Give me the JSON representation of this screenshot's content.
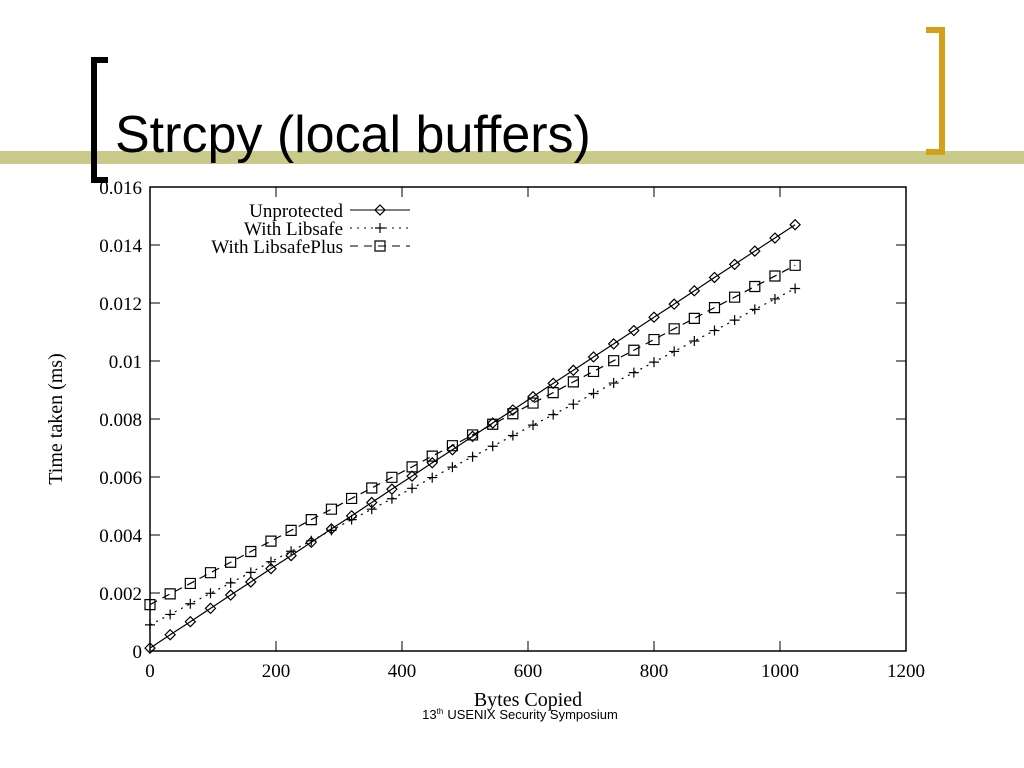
{
  "slide_title": "Strcpy (local buffers)",
  "footer": {
    "number": "13",
    "suffix": "th",
    "text": "USENIX Security Symposium"
  },
  "chart_data": {
    "type": "line",
    "x_label": "Bytes Copied",
    "y_label": "Time taken (ms)",
    "xlim": [
      0,
      1200
    ],
    "xticks": [
      0,
      200,
      400,
      600,
      800,
      1000,
      1200
    ],
    "ylim": [
      0,
      0.016
    ],
    "yticks": [
      0,
      0.002,
      0.004,
      0.006,
      0.008,
      0.01,
      0.012,
      0.014,
      0.016
    ],
    "legend": "top-left",
    "x": [
      0,
      32,
      64,
      96,
      128,
      160,
      192,
      224,
      256,
      288,
      320,
      352,
      384,
      416,
      448,
      480,
      512,
      544,
      576,
      608,
      640,
      672,
      704,
      736,
      768,
      800,
      832,
      864,
      896,
      928,
      960,
      992,
      1024
    ],
    "series": [
      {
        "name": "Unprotected",
        "color": "#000000",
        "marker": "diamond",
        "dash": "solid",
        "values": [
          0.0001,
          0.00056,
          0.00101,
          0.00147,
          0.00193,
          0.00238,
          0.00284,
          0.00329,
          0.00375,
          0.00421,
          0.00466,
          0.00512,
          0.00558,
          0.00603,
          0.00649,
          0.00694,
          0.0074,
          0.00786,
          0.00831,
          0.00877,
          0.00923,
          0.00968,
          0.01014,
          0.01059,
          0.01105,
          0.01151,
          0.01196,
          0.01242,
          0.01288,
          0.01333,
          0.01379,
          0.01424,
          0.0147
        ]
      },
      {
        "name": "With Libsafe",
        "color": "#000000",
        "marker": "plus",
        "dash": "dotted",
        "values": [
          0.0009,
          0.00126,
          0.00163,
          0.00199,
          0.00235,
          0.00271,
          0.00308,
          0.00344,
          0.0038,
          0.00416,
          0.00453,
          0.00489,
          0.00525,
          0.00561,
          0.00598,
          0.00634,
          0.0067,
          0.00706,
          0.00743,
          0.00779,
          0.00815,
          0.00851,
          0.00888,
          0.00924,
          0.0096,
          0.00996,
          0.01033,
          0.01069,
          0.01105,
          0.01141,
          0.01178,
          0.01214,
          0.0125
        ]
      },
      {
        "name": "With LibsafePlus",
        "color": "#000000",
        "marker": "square",
        "dash": "dashed",
        "values": [
          0.0016,
          0.00197,
          0.00233,
          0.0027,
          0.00306,
          0.00343,
          0.00379,
          0.00416,
          0.00453,
          0.00489,
          0.00526,
          0.00562,
          0.00599,
          0.00635,
          0.00672,
          0.00708,
          0.00745,
          0.00782,
          0.00818,
          0.00855,
          0.00891,
          0.00928,
          0.00964,
          0.01001,
          0.01037,
          0.01074,
          0.01111,
          0.01147,
          0.01184,
          0.0122,
          0.01257,
          0.01293,
          0.0133
        ]
      }
    ]
  }
}
